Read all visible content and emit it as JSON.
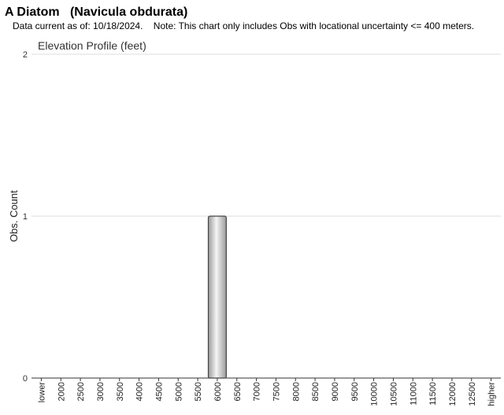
{
  "chart_data": {
    "type": "bar",
    "title": "A Diatom   (Navicula obdurata)",
    "subtitle": "Data current as of: 10/18/2024.    Note: This chart only includes Obs with locational uncertainty <= 400 meters.",
    "chart_title": "Elevation Profile (feet)",
    "y_label": "Obs. Count",
    "categories": [
      "lower",
      "2000",
      "2500",
      "3000",
      "3500",
      "4000",
      "4500",
      "5000",
      "5500",
      "6000",
      "6500",
      "7000",
      "7500",
      "8000",
      "8500",
      "9000",
      "9500",
      "10000",
      "10500",
      "11000",
      "11500",
      "12000",
      "12500",
      "higher"
    ],
    "values": [
      0,
      0,
      0,
      0,
      0,
      0,
      0,
      0,
      0,
      1,
      0,
      0,
      0,
      0,
      0,
      0,
      0,
      0,
      0,
      0,
      0,
      0,
      0,
      0
    ],
    "color": "#9a9a9a",
    "ylim": [
      0,
      2
    ],
    "yticks": [
      0,
      1,
      2
    ],
    "grid": true
  }
}
